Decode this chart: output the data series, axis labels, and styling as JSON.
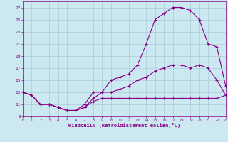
{
  "xlabel": "Windchill (Refroidissement éolien,°C)",
  "background_color": "#cce8f0",
  "grid_color": "#aaccd8",
  "line_color": "#880088",
  "xlim": [
    0,
    23
  ],
  "ylim": [
    9,
    28
  ],
  "xticks": [
    0,
    1,
    2,
    3,
    4,
    5,
    6,
    7,
    8,
    9,
    10,
    11,
    12,
    13,
    14,
    15,
    16,
    17,
    18,
    19,
    20,
    21,
    22,
    23
  ],
  "yticks": [
    9,
    11,
    13,
    15,
    17,
    19,
    21,
    23,
    25,
    27
  ],
  "series": [
    {
      "x": [
        0,
        1,
        2,
        3,
        4,
        5,
        6,
        7,
        8,
        9,
        10,
        11,
        12,
        13,
        14,
        15,
        16,
        17,
        18,
        19,
        20,
        21,
        22,
        23
      ],
      "y": [
        13,
        12.5,
        11,
        11,
        10.5,
        10,
        10,
        10.5,
        11.5,
        12,
        12,
        12,
        12,
        12,
        12,
        12,
        12,
        12,
        12,
        12,
        12,
        12,
        12,
        12.5
      ]
    },
    {
      "x": [
        0,
        1,
        2,
        3,
        4,
        5,
        6,
        7,
        8,
        9,
        10,
        11,
        12,
        13,
        14,
        15,
        16,
        17,
        18,
        19,
        20,
        21,
        22,
        23
      ],
      "y": [
        13,
        12.5,
        11,
        11,
        10.5,
        10,
        10,
        10.5,
        12,
        13,
        13,
        13.5,
        14,
        15,
        15.5,
        16.5,
        17,
        17.5,
        17.5,
        17,
        17.5,
        17,
        15,
        12.5
      ]
    },
    {
      "x": [
        0,
        1,
        2,
        3,
        4,
        5,
        6,
        7,
        8,
        9,
        10,
        11,
        12,
        13,
        14,
        15,
        16,
        17,
        18,
        19,
        20,
        21,
        22,
        23
      ],
      "y": [
        13,
        12.5,
        11,
        11,
        10.5,
        10,
        10,
        11,
        13,
        13,
        15,
        15.5,
        16,
        17.5,
        21,
        25,
        26,
        27,
        27,
        26.5,
        25,
        21,
        20.5,
        14
      ]
    }
  ]
}
